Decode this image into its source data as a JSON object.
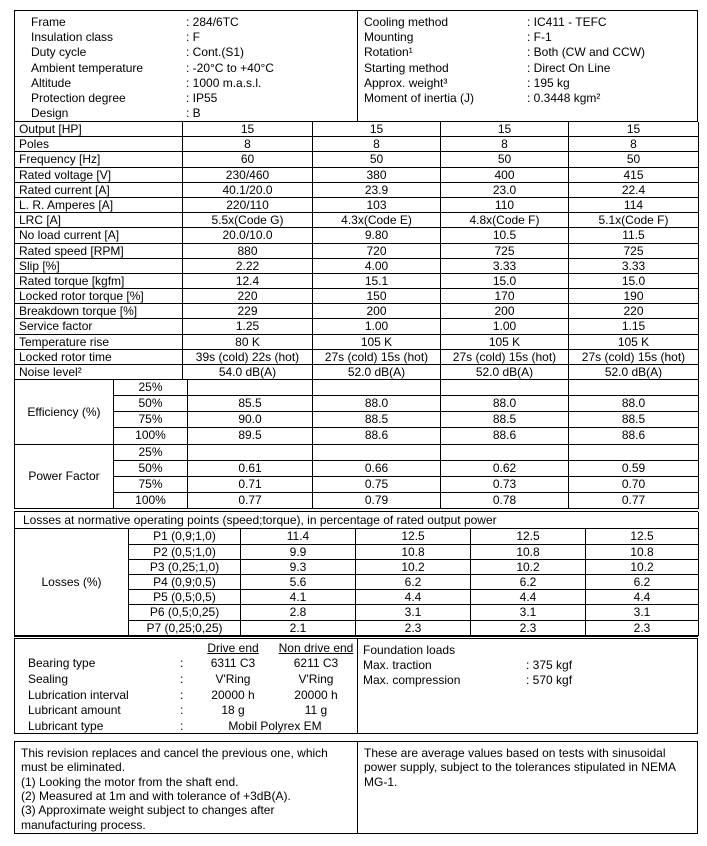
{
  "top_left": {
    "rows": [
      {
        "label": "Frame",
        "value": ": 284/6TC"
      },
      {
        "label": "Insulation class",
        "value": ": F"
      },
      {
        "label": "Duty cycle",
        "value": ": Cont.(S1)"
      },
      {
        "label": "Ambient temperature",
        "value": ": -20°C to +40°C"
      },
      {
        "label": "Altitude",
        "value": ": 1000 m.a.s.l."
      },
      {
        "label": "Protection degree",
        "value": ": IP55"
      },
      {
        "label": "Design",
        "value": ": B"
      }
    ]
  },
  "top_right": {
    "rows": [
      {
        "label": "Cooling method",
        "value": ": IC411 - TEFC"
      },
      {
        "label": "Mounting",
        "value": ": F-1"
      },
      {
        "label": "Rotation¹",
        "value": ": Both (CW and CCW)"
      },
      {
        "label": "Starting method",
        "value": ": Direct On Line"
      },
      {
        "label": "Approx. weight³",
        "value": ": 195 kg"
      },
      {
        "label": "Moment of inertia (J)",
        "value": ": 0.3448 kgm²"
      }
    ]
  },
  "spec_table": {
    "rows": [
      {
        "label": "Output [HP]",
        "values": [
          "15",
          "15",
          "15",
          "15"
        ]
      },
      {
        "label": "Poles",
        "values": [
          "8",
          "8",
          "8",
          "8"
        ]
      },
      {
        "label": "Frequency [Hz]",
        "values": [
          "60",
          "50",
          "50",
          "50"
        ]
      },
      {
        "label": "Rated voltage [V]",
        "values": [
          "230/460",
          "380",
          "400",
          "415"
        ]
      },
      {
        "label": "Rated current [A]",
        "values": [
          "40.1/20.0",
          "23.9",
          "23.0",
          "22.4"
        ]
      },
      {
        "label": "L. R. Amperes [A]",
        "values": [
          "220/110",
          "103",
          "110",
          "114"
        ]
      },
      {
        "label": "LRC [A]",
        "values": [
          "5.5x(Code G)",
          "4.3x(Code E)",
          "4.8x(Code F)",
          "5.1x(Code F)"
        ]
      },
      {
        "label": "No load current [A]",
        "values": [
          "20.0/10.0",
          "9.80",
          "10.5",
          "11.5"
        ]
      },
      {
        "label": "Rated speed [RPM]",
        "values": [
          "880",
          "720",
          "725",
          "725"
        ]
      },
      {
        "label": "Slip [%]",
        "values": [
          "2.22",
          "4.00",
          "3.33",
          "3.33"
        ]
      },
      {
        "label": "Rated torque [kgfm]",
        "values": [
          "12.4",
          "15.1",
          "15.0",
          "15.0"
        ]
      },
      {
        "label": "Locked rotor torque [%]",
        "values": [
          "220",
          "150",
          "170",
          "190"
        ]
      },
      {
        "label": "Breakdown torque [%]",
        "values": [
          "229",
          "200",
          "200",
          "220"
        ]
      },
      {
        "label": "Service factor",
        "values": [
          "1.25",
          "1.00",
          "1.00",
          "1.15"
        ]
      },
      {
        "label": "Temperature rise",
        "values": [
          "80 K",
          "105 K",
          "105 K",
          "105 K"
        ]
      },
      {
        "label": "Locked rotor time",
        "values": [
          "39s (cold) 22s (hot)",
          "27s (cold) 15s (hot)",
          "27s (cold) 15s (hot)",
          "27s (cold) 15s (hot)"
        ]
      },
      {
        "label": "Noise level²",
        "values": [
          "54.0 dB(A)",
          "52.0 dB(A)",
          "52.0 dB(A)",
          "52.0 dB(A)"
        ]
      }
    ]
  },
  "efficiency": {
    "label": "Efficiency (%)",
    "rows": [
      {
        "load": "25%",
        "values": [
          "",
          "",
          "",
          ""
        ]
      },
      {
        "load": "50%",
        "values": [
          "85.5",
          "88.0",
          "88.0",
          "88.0"
        ]
      },
      {
        "load": "75%",
        "values": [
          "90.0",
          "88.5",
          "88.5",
          "88.5"
        ]
      },
      {
        "load": "100%",
        "values": [
          "89.5",
          "88.6",
          "88.6",
          "88.6"
        ]
      }
    ]
  },
  "power_factor": {
    "label": "Power Factor",
    "rows": [
      {
        "load": "25%",
        "values": [
          "",
          "",
          "",
          ""
        ]
      },
      {
        "load": "50%",
        "values": [
          "0.61",
          "0.66",
          "0.62",
          "0.59"
        ]
      },
      {
        "load": "75%",
        "values": [
          "0.71",
          "0.75",
          "0.73",
          "0.70"
        ]
      },
      {
        "load": "100%",
        "values": [
          "0.77",
          "0.79",
          "0.78",
          "0.77"
        ]
      }
    ]
  },
  "losses": {
    "header": "Losses at normative operating points (speed;torque), in percentage of rated output power",
    "label": "Losses (%)",
    "rows": [
      {
        "point": "P1 (0,9;1,0)",
        "values": [
          "11.4",
          "12.5",
          "12.5",
          "12.5"
        ]
      },
      {
        "point": "P2 (0,5;1,0)",
        "values": [
          "9.9",
          "10.8",
          "10.8",
          "10.8"
        ]
      },
      {
        "point": "P3 (0,25;1,0)",
        "values": [
          "9.3",
          "10.2",
          "10.2",
          "10.2"
        ]
      },
      {
        "point": "P4 (0,9;0,5)",
        "values": [
          "5.6",
          "6.2",
          "6.2",
          "6.2"
        ]
      },
      {
        "point": "P5 (0,5;0,5)",
        "values": [
          "4.1",
          "4.4",
          "4.4",
          "4.4"
        ]
      },
      {
        "point": "P6 (0,5;0,25)",
        "values": [
          "2.8",
          "3.1",
          "3.1",
          "3.1"
        ]
      },
      {
        "point": "P7 (0,25;0,25)",
        "values": [
          "2.1",
          "2.3",
          "2.3",
          "2.3"
        ]
      }
    ]
  },
  "bearings": {
    "col_drive": "Drive end",
    "col_nondrive": "Non drive end",
    "rows": [
      {
        "label": "Bearing type",
        "colon": ":",
        "drive": "6311 C3",
        "nondrive": "6211 C3"
      },
      {
        "label": "Sealing",
        "colon": ":",
        "drive": "V'Ring",
        "nondrive": "V'Ring"
      },
      {
        "label": "Lubrication interval",
        "colon": ":",
        "drive": "20000 h",
        "nondrive": "20000 h"
      },
      {
        "label": "Lubricant amount",
        "colon": ":",
        "drive": "18 g",
        "nondrive": "11 g"
      }
    ],
    "lubricant_type": {
      "label": "Lubricant type",
      "colon": ":",
      "value": "Mobil Polyrex EM"
    }
  },
  "foundation": {
    "title": "Foundation loads",
    "rows": [
      {
        "label": "Max. traction",
        "value": ": 375 kgf"
      },
      {
        "label": "Max. compression",
        "value": ": 570 kgf"
      }
    ]
  },
  "notes_left": {
    "lines": [
      "This revision replaces and cancel the previous one, which must be eliminated.",
      "(1) Looking the motor from the shaft end.",
      "(2) Measured at 1m and with tolerance of +3dB(A).",
      "(3) Approximate weight subject to changes after manufacturing process."
    ]
  },
  "notes_right": {
    "text": "These are average values based on tests with sinusoidal power supply, subject to the tolerances stipulated in NEMA MG-1."
  }
}
